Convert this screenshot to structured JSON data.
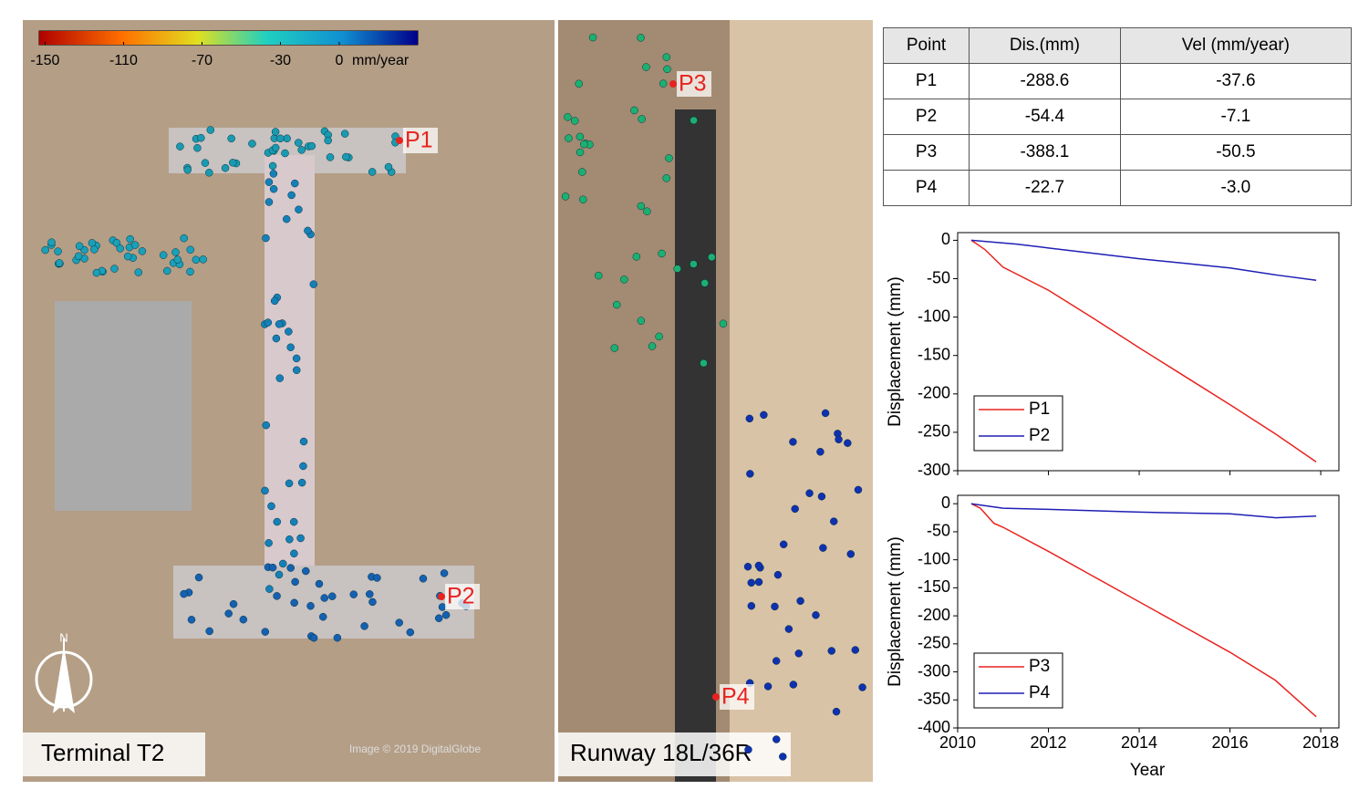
{
  "colorbar": {
    "lim": [
      -153,
      40
    ],
    "ticks": [
      -150,
      -110,
      -70,
      -30,
      0
    ],
    "unit": "mm/year"
  },
  "map_labels": {
    "points": [
      "P1",
      "P2",
      "P3",
      "P4"
    ],
    "left_caption": "Terminal T2",
    "right_caption": "Runway 18L/36R",
    "north": "N",
    "credit": "Image © 2019 DigitalGlobe"
  },
  "table": {
    "header": [
      "Point",
      "Dis.(mm)",
      "Vel (mm/year)"
    ],
    "rows": [
      [
        "P1",
        "-288.6",
        "-37.6"
      ],
      [
        "P2",
        "-54.4",
        "-7.1"
      ],
      [
        "P3",
        "-388.1",
        "-50.5"
      ],
      [
        "P4",
        "-22.7",
        "-3.0"
      ]
    ]
  },
  "chart_data": [
    {
      "type": "line",
      "ylabel": "Displacement (mm)",
      "xlim": [
        2010,
        2018.4
      ],
      "ylim": [
        -300,
        10
      ],
      "xticks": [
        2010,
        2012,
        2014,
        2016,
        2018
      ],
      "yticks": [
        -300,
        -250,
        -200,
        -150,
        -100,
        -50,
        0
      ],
      "series": [
        {
          "name": "P1",
          "color": "#e8231f",
          "x": [
            2010.3,
            2010.6,
            2011,
            2012,
            2013,
            2014,
            2015,
            2016,
            2017,
            2017.9
          ],
          "values": [
            0,
            -12,
            -35,
            -65,
            -102,
            -140,
            -177,
            -214,
            -252,
            -288.6
          ]
        },
        {
          "name": "P2",
          "color": "#1f1fb4",
          "x": [
            2010.3,
            2011.3,
            2012,
            2013,
            2014,
            2015,
            2016,
            2017,
            2017.9
          ],
          "values": [
            0,
            -5,
            -10,
            -17,
            -24,
            -30,
            -36,
            -45,
            -52
          ]
        }
      ]
    },
    {
      "type": "line",
      "ylabel": "Displacement (mm)",
      "xlabel": "Year",
      "xlim": [
        2010,
        2018.4
      ],
      "ylim": [
        -400,
        15
      ],
      "xticks": [
        2010,
        2012,
        2014,
        2016,
        2018
      ],
      "yticks": [
        -400,
        -350,
        -300,
        -250,
        -200,
        -150,
        -100,
        -50,
        0
      ],
      "series": [
        {
          "name": "P3",
          "color": "#e8231f",
          "x": [
            2010.3,
            2010.5,
            2010.8,
            2011,
            2012,
            2013,
            2014,
            2015,
            2016,
            2017,
            2017.9
          ],
          "values": [
            0,
            -8,
            -35,
            -42,
            -85,
            -130,
            -175,
            -220,
            -265,
            -315,
            -380
          ]
        },
        {
          "name": "P4",
          "color": "#1f1fb4",
          "x": [
            2010.3,
            2011,
            2012,
            2014,
            2016,
            2017,
            2017.9
          ],
          "values": [
            0,
            -8,
            -10,
            -15,
            -18,
            -25,
            -22
          ]
        }
      ]
    }
  ]
}
